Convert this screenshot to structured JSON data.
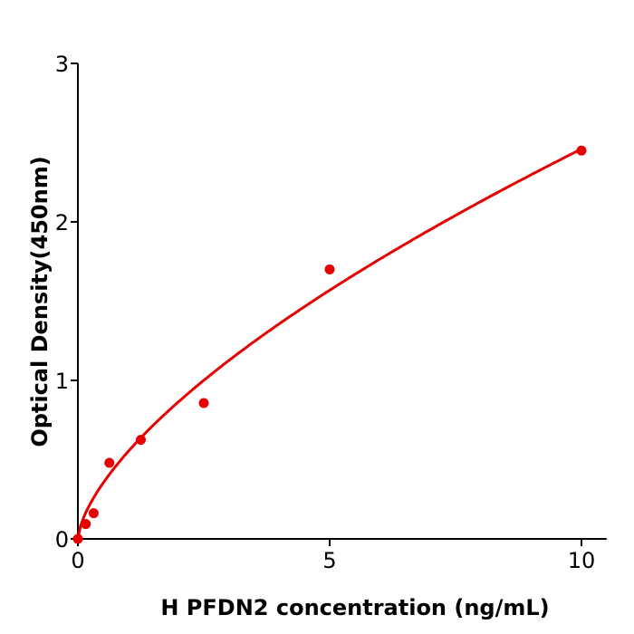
{
  "chart_data": {
    "type": "scatter",
    "title": "",
    "xlabel": "H  PFDN2 concentration (ng/mL)",
    "ylabel": "Optical Density(450nm)",
    "xlim": [
      0,
      10.5
    ],
    "ylim": [
      0,
      3
    ],
    "xticks": [
      "0",
      "5",
      "10"
    ],
    "yticks": [
      "0",
      "1",
      "2",
      "3"
    ],
    "grid": false,
    "legend": "none",
    "color": "#e60000",
    "series": [
      {
        "x": [
          0,
          0.156,
          0.3125,
          0.625,
          1.25,
          2.5,
          5,
          10
        ],
        "y": [
          0.0,
          0.094,
          0.162,
          0.48,
          0.625,
          0.857,
          1.7,
          2.45
        ],
        "fit_curve": true
      }
    ]
  }
}
